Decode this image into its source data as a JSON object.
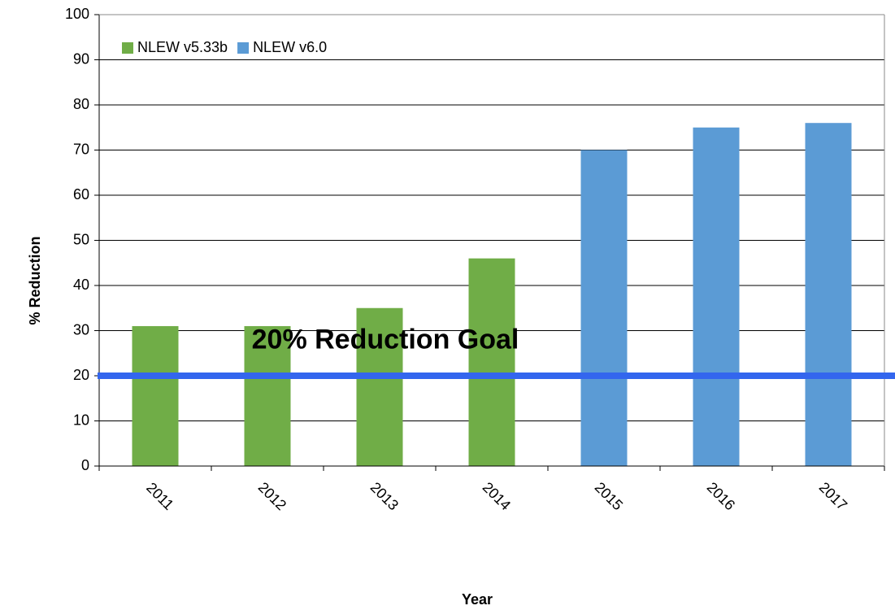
{
  "chart_data": {
    "type": "bar",
    "title": "",
    "xlabel": "Year",
    "ylabel": "% Reduction",
    "ylim": [
      0,
      100
    ],
    "yticks": [
      0,
      10,
      20,
      30,
      40,
      50,
      60,
      70,
      80,
      90,
      100
    ],
    "categories": [
      "2011",
      "2012",
      "2013",
      "2014",
      "2015",
      "2016",
      "2017"
    ],
    "series": [
      {
        "name": "NLEW v5.33b",
        "color": "#70ad47",
        "values": [
          31,
          31,
          35,
          46,
          null,
          null,
          null
        ]
      },
      {
        "name": "NLEW v6.0",
        "color": "#5b9bd5",
        "values": [
          null,
          null,
          null,
          null,
          70,
          75,
          76
        ]
      }
    ],
    "reference_line": {
      "value": 20,
      "label": "20% Reduction Goal",
      "color": "#3366ee"
    },
    "grid": true,
    "legend_position": "top-left"
  }
}
